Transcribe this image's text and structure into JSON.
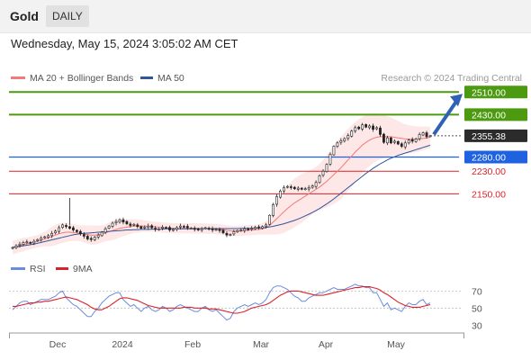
{
  "header": {
    "title": "Gold",
    "timeframe": "DAILY",
    "timestamp": "Wednesday, May 15, 2024 3:05:02 AM CET"
  },
  "colors": {
    "bollinger_line": "#f47a7a",
    "bollinger_fill": "#fde3e3",
    "ma50": "#33559a",
    "resistance": "#4c9a0f",
    "support": "#1f62e0",
    "support_secondary": "#d9222a",
    "current": "#2b2b2b",
    "forecast_arrow": "#2f62b4",
    "rsi": "#6b8cdc",
    "rsi_ma": "#d9222a",
    "candle_up": "#ffffff",
    "candle_down": "#222222"
  },
  "chart_data": [
    {
      "type": "candlestick",
      "legend": [
        {
          "name": "MA 20 + Bollinger Bands",
          "color": "#f47a7a"
        },
        {
          "name": "MA 50",
          "color": "#33559a"
        }
      ],
      "source": "Research © 2024 Trading Central",
      "x_ticks": [
        "Dec",
        "2024",
        "Feb",
        "Mar",
        "Apr",
        "May"
      ],
      "price_levels": [
        {
          "label": "2510.00",
          "value": 2510,
          "kind": "resistance",
          "color": "#4c9a0f"
        },
        {
          "label": "2430.00",
          "value": 2430,
          "kind": "resistance",
          "color": "#4c9a0f"
        },
        {
          "label": "2355.38",
          "value": 2355.38,
          "kind": "current",
          "color": "#2b2b2b"
        },
        {
          "label": "2280.00",
          "value": 2280,
          "kind": "support",
          "color": "#1f62e0"
        },
        {
          "label": "2230.00",
          "value": 2230,
          "kind": "support",
          "color": "#d9222a"
        },
        {
          "label": "2150.00",
          "value": 2150,
          "kind": "support",
          "color": "#d9222a"
        }
      ],
      "forecast": {
        "from": 2360,
        "to": 2510
      },
      "ylim": [
        1925,
        2530
      ],
      "close_profile": [
        1960,
        1966,
        1972,
        1978,
        1980,
        1976,
        1982,
        1988,
        1994,
        1998,
        2002,
        2010,
        2018,
        2030,
        2040,
        2034,
        2028,
        2022,
        2016,
        2008,
        2000,
        1990,
        1988,
        1996,
        2004,
        2014,
        2026,
        2036,
        2046,
        2052,
        2058,
        2050,
        2044,
        2038,
        2042,
        2034,
        2028,
        2032,
        2036,
        2030,
        2024,
        2026,
        2032,
        2030,
        2022,
        2024,
        2030,
        2036,
        2034,
        2030,
        2028,
        2024,
        2022,
        2026,
        2030,
        2026,
        2022,
        2024,
        2020,
        2012,
        2004,
        2006,
        2016,
        2020,
        2022,
        2026,
        2024,
        2028,
        2032,
        2030,
        2034,
        2040,
        2074,
        2112,
        2140,
        2160,
        2172,
        2176,
        2172,
        2168,
        2170,
        2166,
        2168,
        2172,
        2178,
        2190,
        2214,
        2230,
        2254,
        2290,
        2318,
        2330,
        2338,
        2345,
        2356,
        2372,
        2384,
        2380,
        2394,
        2386,
        2390,
        2378,
        2384,
        2360,
        2332,
        2348,
        2330,
        2336,
        2326,
        2318,
        2330,
        2340,
        2336,
        2344,
        2360,
        2366,
        2352,
        2355
      ],
      "ma20": [
        1960,
        1963,
        1967,
        1970,
        1973,
        1976,
        1979,
        1982,
        1986,
        1990,
        1994,
        1999,
        2004,
        2009,
        2012,
        2014,
        2014,
        2013,
        2012,
        2010,
        2008,
        2006,
        2004,
        2004,
        2005,
        2008,
        2012,
        2016,
        2020,
        2024,
        2028,
        2030,
        2032,
        2034,
        2036,
        2036,
        2036,
        2036,
        2035,
        2034,
        2033,
        2032,
        2031,
        2030,
        2029,
        2028,
        2028,
        2028,
        2028,
        2028,
        2028,
        2028,
        2027,
        2027,
        2027,
        2026,
        2026,
        2025,
        2024,
        2023,
        2021,
        2019,
        2018,
        2018,
        2019,
        2020,
        2021,
        2022,
        2023,
        2024,
        2026,
        2030,
        2038,
        2050,
        2062,
        2074,
        2086,
        2098,
        2108,
        2118,
        2126,
        2134,
        2142,
        2150,
        2158,
        2166,
        2174,
        2184,
        2194,
        2206,
        2218,
        2230,
        2242,
        2256,
        2270,
        2284,
        2298,
        2310,
        2322,
        2332,
        2340,
        2346,
        2350,
        2352,
        2352,
        2352,
        2352,
        2350,
        2348,
        2346,
        2344,
        2343,
        2343,
        2343,
        2344,
        2346,
        2348,
        2350
      ],
      "ma50": [
        1960,
        1962,
        1964,
        1966,
        1968,
        1970,
        1972,
        1975,
        1978,
        1981,
        1984,
        1987,
        1990,
        1993,
        1996,
        1999,
        2002,
        2005,
        2007,
        2009,
        2010,
        2011,
        2012,
        2013,
        2014,
        2015,
        2016,
        2017,
        2018,
        2019,
        2020,
        2021,
        2022,
        2022,
        2023,
        2023,
        2024,
        2024,
        2024,
        2025,
        2025,
        2025,
        2025,
        2026,
        2026,
        2026,
        2026,
        2026,
        2026,
        2026,
        2026,
        2027,
        2027,
        2027,
        2027,
        2027,
        2027,
        2027,
        2027,
        2027,
        2027,
        2027,
        2027,
        2027,
        2028,
        2028,
        2028,
        2028,
        2028,
        2029,
        2030,
        2031,
        2033,
        2035,
        2038,
        2041,
        2044,
        2048,
        2052,
        2056,
        2061,
        2066,
        2072,
        2078,
        2084,
        2091,
        2098,
        2106,
        2114,
        2123,
        2132,
        2142,
        2152,
        2162,
        2172,
        2182,
        2192,
        2202,
        2212,
        2222,
        2231,
        2240,
        2248,
        2256,
        2263,
        2270,
        2276,
        2281,
        2286,
        2290,
        2294,
        2298,
        2302,
        2306,
        2310,
        2314,
        2318,
        2322
      ],
      "band_half_width": [
        24,
        24,
        24,
        24,
        22,
        22,
        22,
        22,
        24,
        26,
        30,
        34,
        36,
        36,
        36,
        34,
        32,
        30,
        28,
        28,
        30,
        32,
        34,
        34,
        32,
        30,
        30,
        32,
        34,
        34,
        32,
        30,
        28,
        26,
        24,
        24,
        22,
        20,
        20,
        18,
        18,
        18,
        18,
        18,
        18,
        18,
        18,
        18,
        18,
        18,
        18,
        18,
        18,
        18,
        18,
        18,
        18,
        18,
        18,
        18,
        18,
        18,
        18,
        18,
        18,
        18,
        18,
        18,
        18,
        18,
        20,
        24,
        32,
        44,
        56,
        66,
        74,
        80,
        84,
        86,
        86,
        86,
        84,
        82,
        80,
        80,
        82,
        86,
        92,
        98,
        104,
        108,
        110,
        110,
        110,
        108,
        106,
        104,
        100,
        96,
        92,
        88,
        84,
        80,
        76,
        72,
        68,
        64,
        60,
        56,
        52,
        50,
        48,
        46,
        44,
        42,
        40,
        38
      ]
    },
    {
      "type": "line",
      "legend": [
        {
          "name": "RSI",
          "color": "#6b8cdc"
        },
        {
          "name": "9MA",
          "color": "#d9222a"
        }
      ],
      "y_ticks": [
        "70",
        "50",
        "30"
      ],
      "ylim": [
        25,
        82
      ],
      "rsi": [
        48,
        52,
        56,
        58,
        58,
        54,
        56,
        58,
        60,
        60,
        60,
        62,
        64,
        68,
        70,
        62,
        58,
        54,
        52,
        48,
        44,
        40,
        40,
        46,
        50,
        56,
        60,
        64,
        66,
        68,
        68,
        60,
        56,
        52,
        54,
        50,
        46,
        50,
        52,
        48,
        46,
        48,
        52,
        50,
        46,
        48,
        52,
        54,
        52,
        50,
        48,
        46,
        46,
        50,
        52,
        48,
        46,
        48,
        44,
        40,
        36,
        38,
        46,
        50,
        52,
        54,
        52,
        54,
        56,
        54,
        56,
        60,
        68,
        74,
        76,
        76,
        74,
        72,
        68,
        64,
        62,
        58,
        58,
        62,
        64,
        66,
        68,
        68,
        70,
        72,
        74,
        72,
        72,
        72,
        74,
        76,
        78,
        76,
        76,
        74,
        74,
        68,
        68,
        60,
        52,
        56,
        48,
        50,
        48,
        46,
        52,
        56,
        54,
        54,
        58,
        60,
        54,
        56
      ],
      "rsi_ma": [
        52,
        52,
        53,
        54,
        55,
        56,
        56,
        57,
        57,
        58,
        58,
        59,
        60,
        61,
        62,
        63,
        62,
        61,
        60,
        58,
        56,
        54,
        51,
        49,
        48,
        48,
        50,
        52,
        55,
        58,
        61,
        62,
        62,
        61,
        60,
        59,
        57,
        55,
        53,
        52,
        51,
        50,
        50,
        50,
        50,
        50,
        50,
        50,
        51,
        51,
        51,
        50,
        50,
        50,
        50,
        49,
        49,
        49,
        48,
        47,
        46,
        45,
        44,
        44,
        45,
        46,
        48,
        50,
        51,
        52,
        53,
        54,
        56,
        59,
        62,
        65,
        67,
        69,
        70,
        70,
        70,
        69,
        68,
        67,
        66,
        65,
        65,
        65,
        66,
        67,
        68,
        69,
        70,
        71,
        72,
        73,
        74,
        74,
        75,
        75,
        75,
        74,
        73,
        71,
        68,
        66,
        63,
        60,
        57,
        55,
        53,
        52,
        51,
        51,
        51,
        52,
        53,
        54
      ]
    }
  ]
}
